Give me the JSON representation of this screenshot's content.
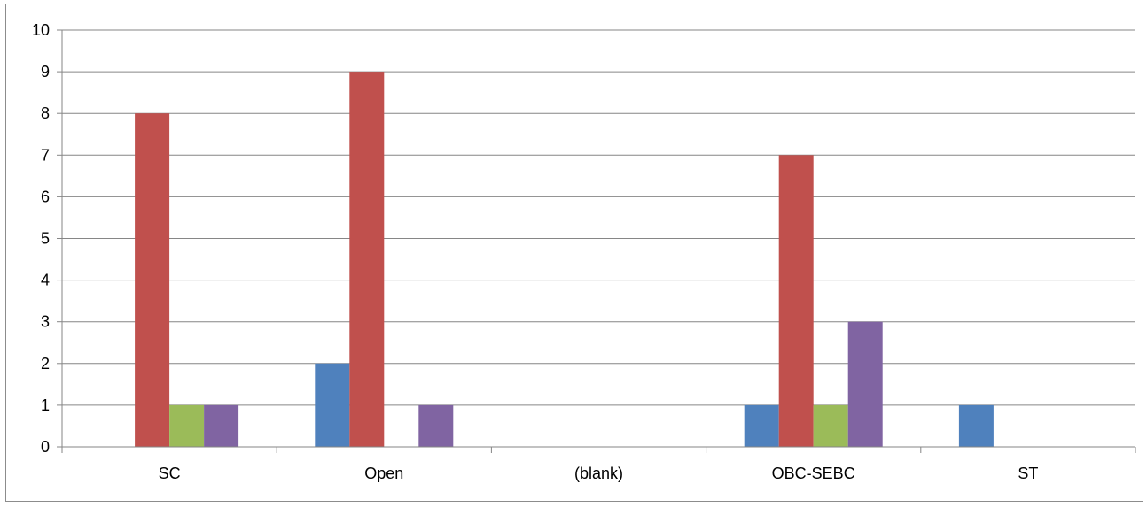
{
  "chart_data": {
    "type": "bar",
    "title": "",
    "xlabel": "",
    "ylabel": "",
    "categories": [
      "SC",
      "Open",
      "(blank)",
      "OBC-SEBC",
      "ST"
    ],
    "series": [
      {
        "color": "#4f81bd",
        "values": [
          0,
          2,
          0,
          1,
          1
        ]
      },
      {
        "color": "#c0504d",
        "values": [
          8,
          9,
          0,
          7,
          0
        ]
      },
      {
        "color": "#9bbb59",
        "values": [
          1,
          0,
          0,
          1,
          0
        ]
      },
      {
        "color": "#8064a2",
        "values": [
          1,
          1,
          0,
          3,
          0
        ]
      }
    ],
    "ylim": [
      0,
      10
    ],
    "yticks": [
      0,
      1,
      2,
      3,
      4,
      5,
      6,
      7,
      8,
      9,
      10
    ],
    "grid": true,
    "legend": "none"
  }
}
